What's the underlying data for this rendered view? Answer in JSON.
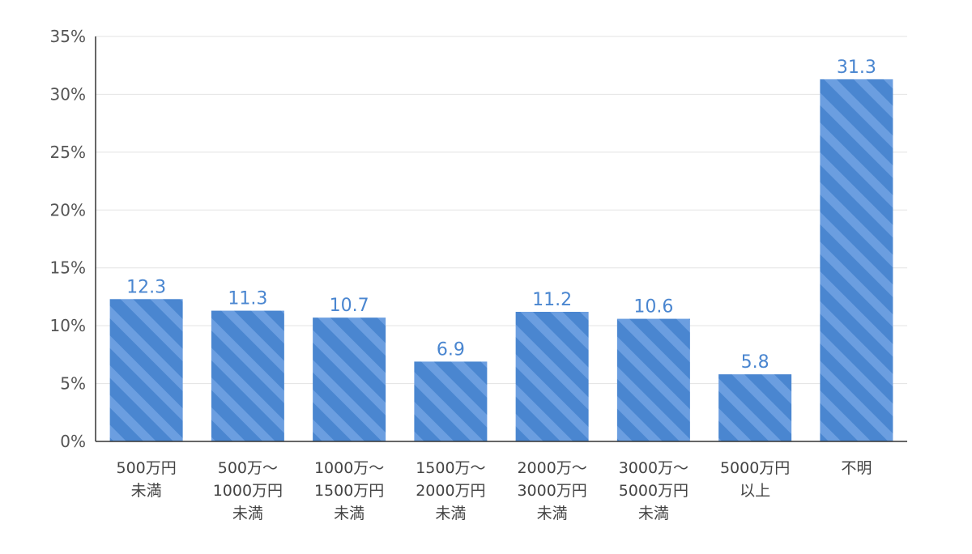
{
  "chart_data": {
    "type": "bar",
    "title": "",
    "xlabel": "",
    "ylabel": "",
    "ylim": [
      0,
      35
    ],
    "yticks": [
      "0%",
      "5%",
      "10%",
      "15%",
      "20%",
      "25%",
      "30%",
      "35%"
    ],
    "ytick_values": [
      0,
      5,
      10,
      15,
      20,
      25,
      30,
      35
    ],
    "grid": true,
    "categories": [
      [
        "500万円",
        "未満"
      ],
      [
        "500万〜",
        "1000万円",
        "未満"
      ],
      [
        "1000万〜",
        "1500万円",
        "未満"
      ],
      [
        "1500万〜",
        "2000万円",
        "未満"
      ],
      [
        "2000万〜",
        "3000万円",
        "未満"
      ],
      [
        "3000万〜",
        "5000万円",
        "未満"
      ],
      [
        "5000万円",
        "以上"
      ],
      [
        "不明"
      ]
    ],
    "values": [
      12.3,
      11.3,
      10.7,
      6.9,
      11.2,
      10.6,
      5.8,
      31.3
    ],
    "data_labels": [
      "12.3",
      "11.3",
      "10.7",
      "6.9",
      "11.2",
      "10.6",
      "5.8",
      "31.3"
    ],
    "colors": {
      "bar": "#4a86d0",
      "bar_stripe": "#6b9ee0",
      "data_label": "#4a86d0"
    }
  }
}
